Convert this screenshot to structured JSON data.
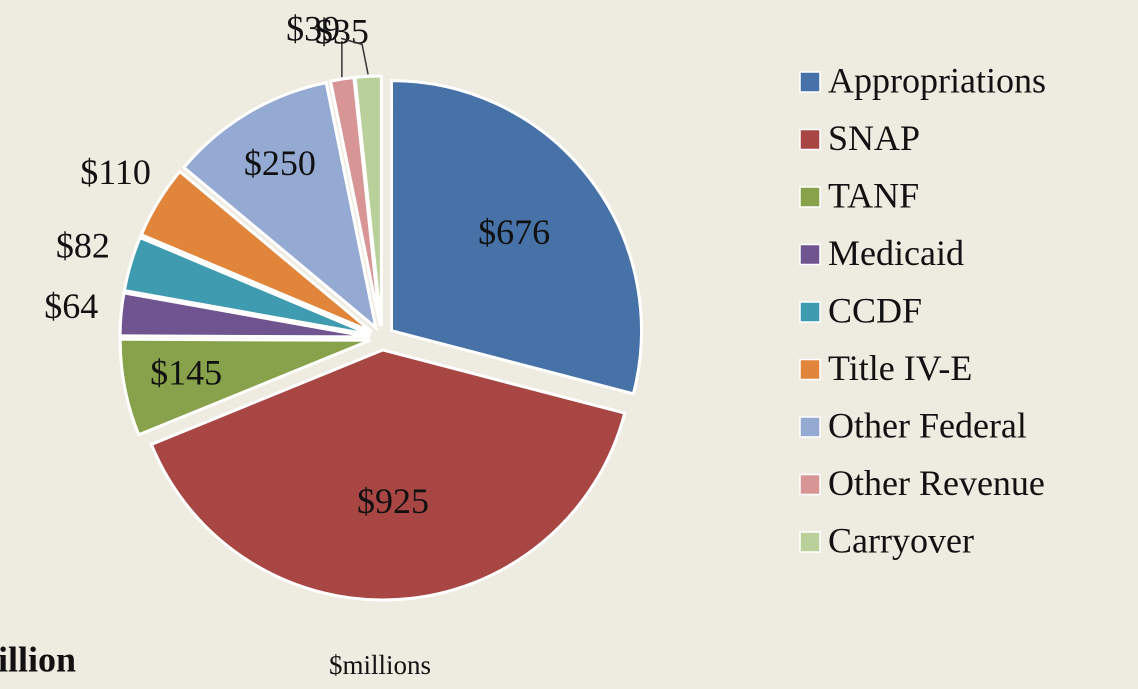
{
  "chart_data": {
    "type": "pie",
    "subtitle": "$millions",
    "annotation": "illion",
    "categories": [
      "Appropriations",
      "SNAP",
      "TANF",
      "Medicaid",
      "CCDF",
      "Title IV-E",
      "Other Federal",
      "Other Revenue",
      "Carryover"
    ],
    "values": [
      676,
      925,
      145,
      64,
      82,
      110,
      250,
      35,
      39
    ],
    "value_labels": [
      "$676",
      "$925",
      "$145",
      "$64",
      "$82",
      "$110",
      "$250",
      "$35",
      "$39"
    ],
    "colors": [
      "#4672a8",
      "#a84644",
      "#87a24a",
      "#6f548f",
      "#3f9bb0",
      "#e0853a",
      "#94aad3",
      "#d79595",
      "#b9d09a"
    ],
    "legend": "right"
  }
}
